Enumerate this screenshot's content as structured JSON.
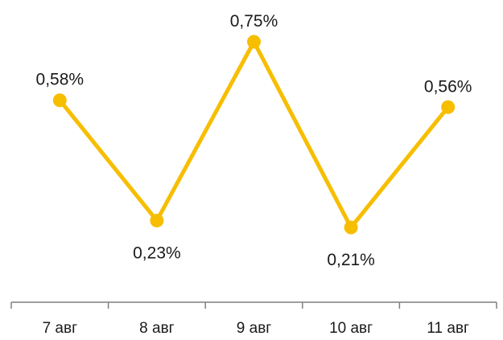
{
  "chart_data": {
    "type": "line",
    "categories": [
      "7 авг",
      "8 авг",
      "9 авг",
      "10 авг",
      "11 авг"
    ],
    "series": [
      {
        "values": [
          0.58,
          0.23,
          0.75,
          0.21,
          0.56
        ],
        "data_labels": [
          "0,58%",
          "0,23%",
          "0,75%",
          "0,21%",
          "0,56%"
        ],
        "color": "#F7BE00"
      }
    ],
    "label_positions": [
      "above",
      "below",
      "above",
      "below",
      "above"
    ],
    "grid": false,
    "legend": "none",
    "axis_color": "#7f7f7f"
  }
}
